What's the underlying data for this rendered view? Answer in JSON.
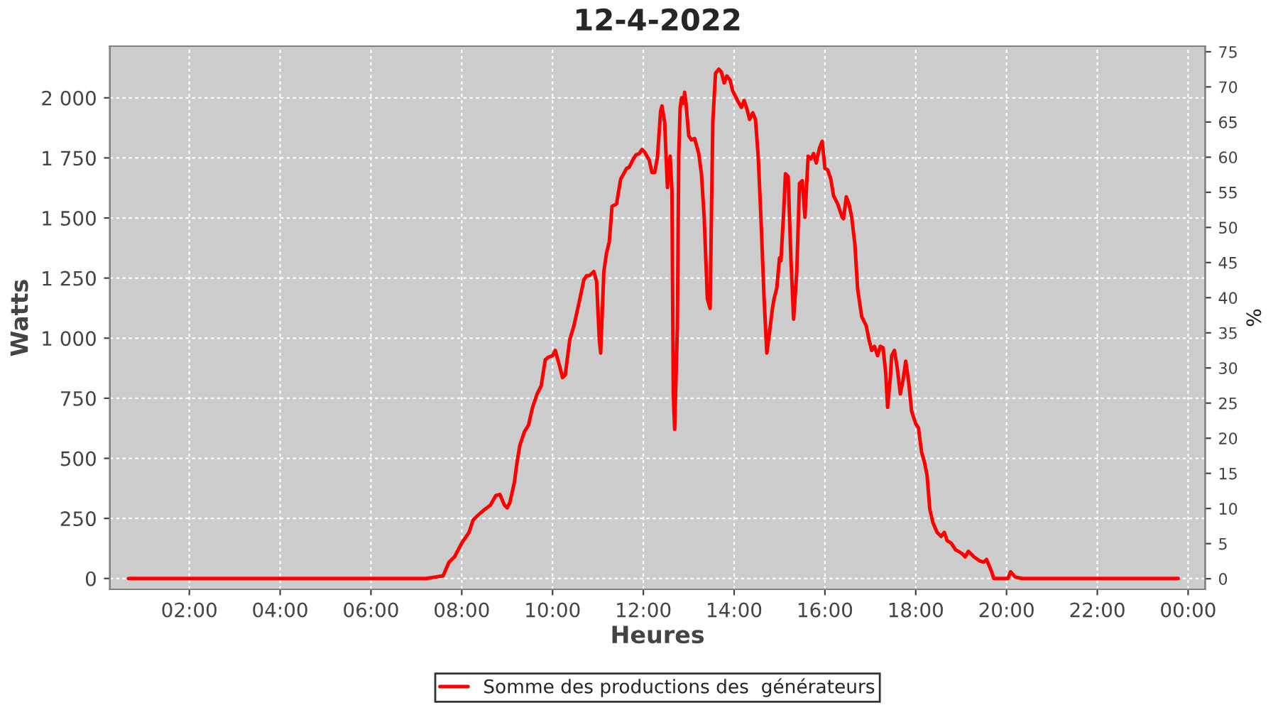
{
  "chart_data": {
    "type": "line",
    "title": "12-4-2022",
    "xlabel": "Heures",
    "ylabel": "Watts",
    "y2label": "%",
    "xlim": [
      0.25,
      24.375
    ],
    "xticks": [
      {
        "value": 2,
        "label": "02:00"
      },
      {
        "value": 4,
        "label": "04:00"
      },
      {
        "value": 6,
        "label": "06:00"
      },
      {
        "value": 8,
        "label": "08:00"
      },
      {
        "value": 10,
        "label": "10:00"
      },
      {
        "value": 12,
        "label": "12:00"
      },
      {
        "value": 14,
        "label": "14:00"
      },
      {
        "value": 16,
        "label": "16:00"
      },
      {
        "value": 18,
        "label": "18:00"
      },
      {
        "value": 20,
        "label": "20:00"
      },
      {
        "value": 22,
        "label": "22:00"
      },
      {
        "value": 24,
        "label": "00:00"
      }
    ],
    "ylim": [
      -45,
      2215
    ],
    "yticks": [
      0,
      250,
      500,
      750,
      {
        "value": 1000,
        "label": "1 000"
      },
      {
        "value": 1250,
        "label": "1 250"
      },
      {
        "value": 1500,
        "label": "1 500"
      },
      {
        "value": 1750,
        "label": "1 750"
      },
      {
        "value": 2000,
        "label": "2 000"
      }
    ],
    "y2lim": [
      -1.5,
      75.8
    ],
    "y2ticks": [
      0,
      5,
      10,
      15,
      20,
      25,
      30,
      35,
      40,
      45,
      50,
      55,
      60,
      65,
      70,
      75
    ],
    "grid": true,
    "legend": "bottom",
    "marker": "none",
    "line_style": "solid",
    "series": [
      {
        "name": "Somme des productions des  générateurs",
        "color": "#ff0000",
        "x": [
          0.66,
          7.22,
          7.59,
          7.72,
          7.84,
          8.0,
          8.16,
          8.25,
          8.34,
          8.47,
          8.63,
          8.75,
          8.84,
          8.94,
          9.0,
          9.06,
          9.16,
          9.22,
          9.28,
          9.38,
          9.47,
          9.56,
          9.66,
          9.75,
          9.84,
          9.91,
          10.0,
          10.06,
          10.16,
          10.22,
          10.28,
          10.38,
          10.47,
          10.59,
          10.69,
          10.75,
          10.81,
          10.91,
          10.97,
          11.03,
          11.06,
          11.13,
          11.19,
          11.25,
          11.31,
          11.41,
          11.5,
          11.63,
          11.69,
          11.78,
          11.84,
          11.91,
          11.97,
          12.03,
          12.13,
          12.19,
          12.25,
          12.31,
          12.38,
          12.41,
          12.47,
          12.53,
          12.56,
          12.59,
          12.63,
          12.66,
          12.69,
          12.75,
          12.78,
          12.81,
          12.84,
          12.88,
          12.91,
          12.94,
          13.0,
          13.06,
          13.13,
          13.22,
          13.28,
          13.34,
          13.41,
          13.47,
          13.53,
          13.59,
          13.66,
          13.72,
          13.78,
          13.84,
          13.91,
          13.97,
          14.03,
          14.09,
          14.16,
          14.22,
          14.28,
          14.34,
          14.41,
          14.47,
          14.53,
          14.59,
          14.66,
          14.72,
          14.78,
          14.84,
          14.88,
          14.94,
          15.0,
          15.03,
          15.09,
          15.13,
          15.19,
          15.25,
          15.31,
          15.38,
          15.44,
          15.5,
          15.56,
          15.63,
          15.69,
          15.75,
          15.81,
          15.88,
          15.94,
          16.0,
          16.06,
          16.13,
          16.19,
          16.28,
          16.38,
          16.41,
          16.47,
          16.53,
          16.59,
          16.66,
          16.72,
          16.81,
          16.91,
          16.97,
          17.03,
          17.09,
          17.16,
          17.22,
          17.28,
          17.34,
          17.38,
          17.44,
          17.47,
          17.53,
          17.59,
          17.66,
          17.72,
          17.78,
          17.84,
          17.91,
          18.0,
          18.06,
          18.13,
          18.19,
          18.25,
          18.31,
          18.38,
          18.47,
          18.56,
          18.63,
          18.69,
          18.78,
          18.88,
          18.94,
          19.03,
          19.09,
          19.16,
          19.22,
          19.28,
          19.41,
          19.5,
          19.56,
          19.66,
          19.72,
          20.03,
          20.09,
          20.19,
          20.34,
          23.78
        ],
        "values": [
          0,
          0,
          11,
          68,
          90,
          147,
          192,
          243,
          260,
          282,
          305,
          345,
          350,
          305,
          294,
          316,
          401,
          486,
          554,
          610,
          638,
          712,
          768,
          802,
          910,
          921,
          927,
          949,
          881,
          836,
          847,
          994,
          1051,
          1153,
          1243,
          1260,
          1260,
          1277,
          1237,
          994,
          938,
          1277,
          1356,
          1401,
          1548,
          1559,
          1661,
          1706,
          1712,
          1746,
          1763,
          1768,
          1785,
          1774,
          1740,
          1689,
          1689,
          1751,
          1944,
          1966,
          1898,
          1627,
          1718,
          1757,
          1616,
          768,
          621,
          1051,
          1763,
          1955,
          2000,
          1977,
          2023,
          1977,
          1842,
          1825,
          1831,
          1768,
          1684,
          1503,
          1164,
          1124,
          1898,
          2102,
          2119,
          2107,
          2062,
          2091,
          2074,
          2028,
          2006,
          1983,
          1960,
          1989,
          1955,
          1910,
          1938,
          1910,
          1757,
          1503,
          1164,
          938,
          1023,
          1119,
          1164,
          1209,
          1334,
          1322,
          1520,
          1684,
          1672,
          1334,
          1079,
          1277,
          1644,
          1655,
          1503,
          1757,
          1746,
          1768,
          1729,
          1791,
          1819,
          1706,
          1700,
          1661,
          1593,
          1559,
          1503,
          1497,
          1588,
          1559,
          1503,
          1390,
          1204,
          1090,
          1051,
          994,
          949,
          966,
          927,
          966,
          960,
          853,
          712,
          836,
          927,
          949,
          881,
          768,
          825,
          904,
          825,
          695,
          644,
          627,
          525,
          486,
          429,
          288,
          232,
          192,
          175,
          192,
          158,
          147,
          119,
          113,
          102,
          90,
          113,
          102,
          90,
          73,
          68,
          79,
          34,
          0,
          0,
          28,
          6,
          0,
          0
        ]
      }
    ]
  }
}
